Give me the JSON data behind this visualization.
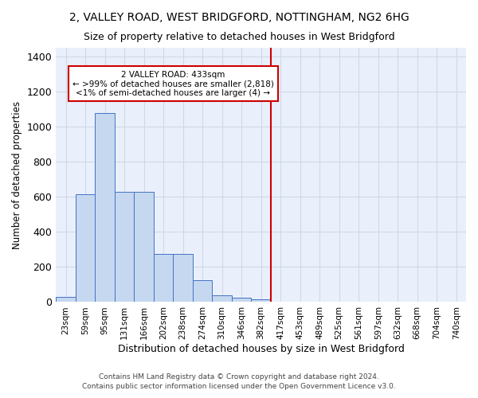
{
  "title": "2, VALLEY ROAD, WEST BRIDGFORD, NOTTINGHAM, NG2 6HG",
  "subtitle": "Size of property relative to detached houses in West Bridgford",
  "xlabel": "Distribution of detached houses by size in West Bridgford",
  "ylabel": "Number of detached properties",
  "footer_line1": "Contains HM Land Registry data © Crown copyright and database right 2024.",
  "footer_line2": "Contains public sector information licensed under the Open Government Licence v3.0.",
  "bin_labels": [
    "23sqm",
    "59sqm",
    "95sqm",
    "131sqm",
    "166sqm",
    "202sqm",
    "238sqm",
    "274sqm",
    "310sqm",
    "346sqm",
    "382sqm",
    "417sqm",
    "453sqm",
    "489sqm",
    "525sqm",
    "561sqm",
    "597sqm",
    "632sqm",
    "668sqm",
    "704sqm",
    "740sqm"
  ],
  "bar_values": [
    30,
    615,
    1080,
    630,
    630,
    275,
    275,
    125,
    40,
    25,
    15,
    0,
    0,
    0,
    0,
    0,
    0,
    0,
    0,
    0,
    0
  ],
  "bar_color": "#c5d8f0",
  "bar_edge_color": "#4472c4",
  "grid_color": "#d0d8e8",
  "background_color": "#eaf0fb",
  "vline_x_index": 11,
  "vline_color": "#cc0000",
  "annotation_line1": "2 VALLEY ROAD: 433sqm",
  "annotation_line2": "← >99% of detached houses are smaller (2,818)",
  "annotation_line3": "<1% of semi-detached houses are larger (4) →",
  "annotation_box_color": "#cc0000",
  "ylim": [
    0,
    1450
  ],
  "yticks": [
    0,
    200,
    400,
    600,
    800,
    1000,
    1200,
    1400
  ]
}
